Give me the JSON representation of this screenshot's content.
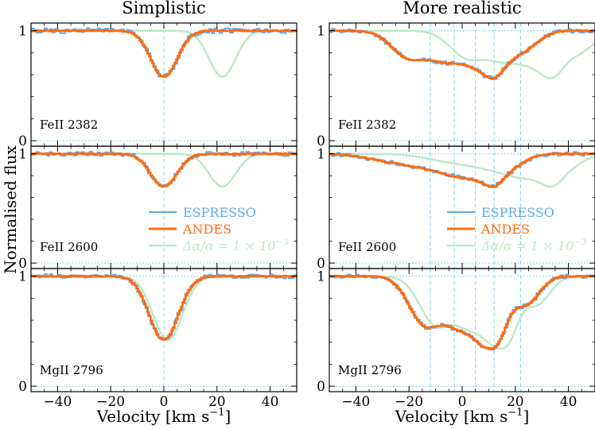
{
  "chart_data": {
    "type": "line",
    "title_left": "Simplistic",
    "title_right": "More realistic",
    "ylabel": "Normalised flux",
    "xlabel": "Velocity [km s⁻¹]",
    "xlabel_main": "Velocity [km s",
    "xlabel_exp": "−1",
    "xlabel_close": "]",
    "xlim": [
      -50,
      50
    ],
    "ylim": [
      -0.05,
      1.07
    ],
    "x_ticks": [
      -40,
      -20,
      0,
      20,
      40
    ],
    "x_tick_labels": [
      "−40",
      "−20",
      "0",
      "20",
      "40"
    ],
    "y_ticks": [
      0,
      1
    ],
    "y_tick_labels": [
      "0",
      "1"
    ],
    "legend": {
      "espresso": "ESPRESSO",
      "andes": "ANDES",
      "shifted_prefix": "Δα/α = 1 × 10",
      "shifted_exp": "−3",
      "shifted_full": "Δα/α = 1 × 10⁻³"
    },
    "colors": {
      "espresso": "#5fa8e8",
      "andes": "#ff6a0f",
      "shifted": "#bde8c8",
      "guide": "#7fdcea"
    },
    "rows": [
      {
        "ion": "FeII 2382",
        "left": {
          "components": [
            [
              0,
              0.42,
              5.0
            ]
          ],
          "shift": 22,
          "noise": 0.022,
          "markers": [
            0
          ]
        },
        "right": {
          "components": [
            [
              -20,
              0.24,
              6.5
            ],
            [
              -8,
              0.18,
              6.0
            ],
            [
              4,
              0.28,
              8.0
            ],
            [
              12,
              0.28,
              4.5
            ],
            [
              22,
              0.18,
              6.0
            ]
          ],
          "shift": 22,
          "noise": 0.018,
          "markers": [
            -12,
            -3,
            5,
            12,
            22
          ]
        }
      },
      {
        "ion": "FeII 2600",
        "left": {
          "components": [
            [
              0,
              0.3,
              5.0
            ]
          ],
          "shift": 22,
          "noise": 0.02,
          "markers": [
            0
          ]
        },
        "right": {
          "components": [
            [
              -25,
              0.07,
              10
            ],
            [
              -8,
              0.12,
              9
            ],
            [
              3,
              0.16,
              7
            ],
            [
              12,
              0.22,
              4.5
            ],
            [
              20,
              0.08,
              5
            ]
          ],
          "shift": 22,
          "noise": 0.018,
          "markers": [
            -12,
            -3,
            5,
            12,
            22
          ]
        }
      },
      {
        "ion": "MgII 2796",
        "left": {
          "components": [
            [
              0,
              0.58,
              5.5
            ]
          ],
          "shift": 1.5,
          "noise": 0.02,
          "markers": [
            0
          ]
        },
        "right": {
          "components": [
            [
              -14,
              0.42,
              6.0
            ],
            [
              -2,
              0.38,
              6.5
            ],
            [
              8,
              0.5,
              6.0
            ],
            [
              13,
              0.4,
              4.0
            ],
            [
              24,
              0.25,
              5.0
            ]
          ],
          "shift": 4,
          "noise": 0.016,
          "markers": [
            -12,
            -3,
            5,
            12,
            22
          ]
        }
      }
    ]
  }
}
